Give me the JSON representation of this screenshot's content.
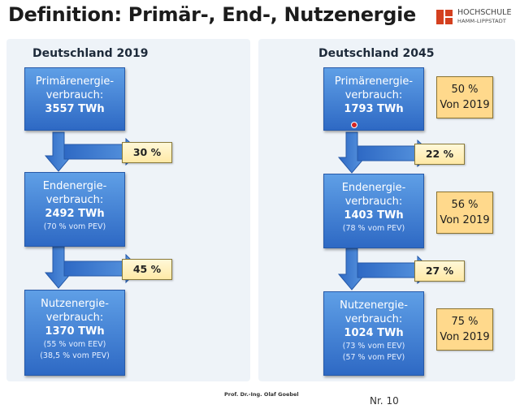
{
  "title": "Definition: Primär-, End-, Nutzenergie",
  "logo": {
    "line1": "HOCHSCHULE",
    "line2": "HAMM-LIPPSTADT",
    "brand_color": "#d4401f"
  },
  "left": {
    "heading": "Deutschland 2019",
    "primary": {
      "label1": "Primärenergie-",
      "label2": "verbrauch:",
      "value": "3557 TWh"
    },
    "loss1": "30 %",
    "final": {
      "label1": "Endenergie-",
      "label2": "verbrauch:",
      "value": "2492 TWh",
      "note1": "(70 % vom PEV)"
    },
    "loss2": "45 %",
    "useful": {
      "label1": "Nutzenergie-",
      "label2": "verbrauch:",
      "value": "1370 TWh",
      "note1": "(55 % vom EEV)",
      "note2": "(38,5 % vom PEV)"
    }
  },
  "right": {
    "heading": "Deutschland 2045",
    "primary": {
      "label1": "Primärenergie-",
      "label2": "verbrauch:",
      "value": "1793 TWh"
    },
    "loss1": "22 %",
    "final": {
      "label1": "Endenergie-",
      "label2": "verbrauch:",
      "value": "1403 TWh",
      "note1": "(78 % vom PEV)"
    },
    "loss2": "27 %",
    "useful": {
      "label1": "Nutzenergie-",
      "label2": "verbrauch:",
      "value": "1024 TWh",
      "note1": "(73 % vom EEV)",
      "note2": "(57 % vom PEV)"
    },
    "comparisons": [
      {
        "line1": "50 %",
        "line2": "Von 2019"
      },
      {
        "line1": "56 %",
        "line2": "Von 2019"
      },
      {
        "line1": "75 %",
        "line2": "Von 2019"
      }
    ]
  },
  "footer": {
    "author": "Prof. Dr.-Ing. Olaf Goebel",
    "slide": "Nr. 10"
  },
  "colors": {
    "box": "#3f7fd6",
    "loss_box": "#fff1c2",
    "comparison_box": "#ffd98c"
  }
}
